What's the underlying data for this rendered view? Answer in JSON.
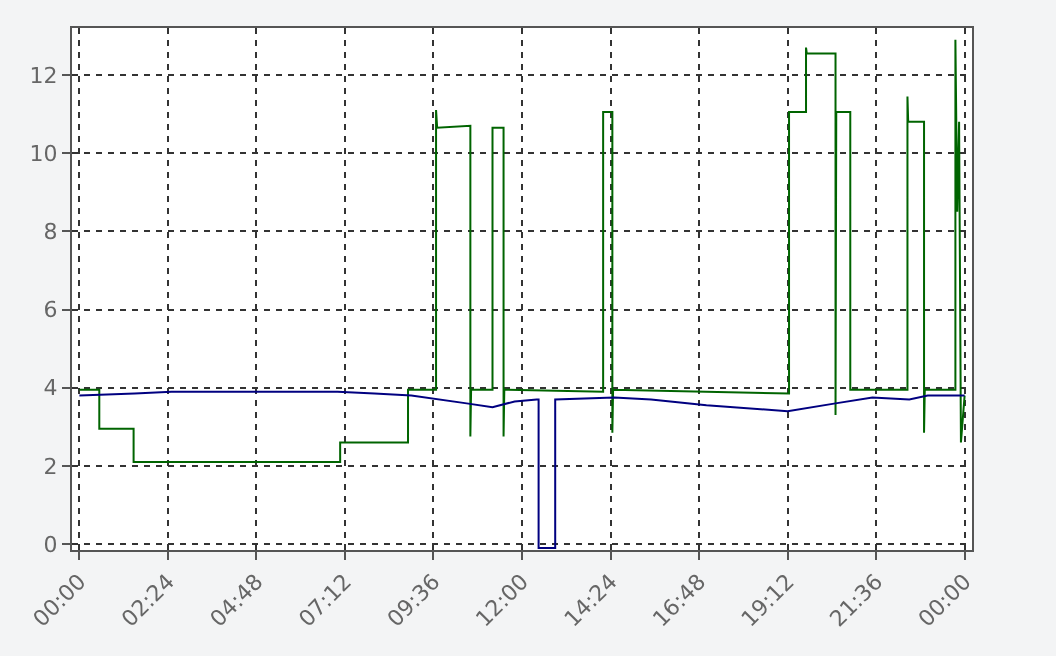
{
  "chart_data": {
    "type": "line",
    "xlim": [
      -0.2,
      24.2
    ],
    "xticks": [
      {
        "value": 0,
        "label": "00:00"
      },
      {
        "value": 2.4,
        "label": "02:24"
      },
      {
        "value": 4.8,
        "label": "04:48"
      },
      {
        "value": 7.2,
        "label": "07:12"
      },
      {
        "value": 9.6,
        "label": "09:36"
      },
      {
        "value": 12,
        "label": "12:00"
      },
      {
        "value": 14.4,
        "label": "14:24"
      },
      {
        "value": 16.8,
        "label": "16:48"
      },
      {
        "value": 19.2,
        "label": "19:12"
      },
      {
        "value": 21.6,
        "label": "21:36"
      },
      {
        "value": 24,
        "label": "00:00"
      }
    ],
    "ylim": [
      -0.15,
      13.2
    ],
    "yticks": [
      0,
      2,
      4,
      6,
      8,
      10,
      12
    ],
    "grid": true,
    "marker": "none",
    "line_style": "solid",
    "series": [
      {
        "color": "#006400",
        "x": [
          0,
          0.54,
          0.54,
          1.47,
          1.47,
          7.07,
          7.07,
          8.91,
          8.91,
          9.67,
          9.67,
          9.7,
          10.6,
          10.6,
          10.62,
          11.2,
          11.2,
          11.5,
          11.5,
          11.52,
          14.2,
          14.2,
          14.45,
          14.45,
          14.47,
          19.24,
          19.24,
          19.7,
          19.7,
          19.72,
          20.5,
          20.5,
          20.52,
          20.9,
          20.9,
          22.45,
          22.45,
          22.47,
          22.9,
          22.9,
          22.92,
          23.75,
          23.75,
          23.8,
          23.85,
          23.9,
          24.0
        ],
        "values": [
          3.95,
          3.95,
          2.95,
          2.95,
          2.1,
          2.1,
          2.6,
          2.6,
          3.95,
          3.95,
          11.1,
          10.65,
          10.7,
          2.75,
          3.95,
          3.95,
          10.65,
          10.65,
          2.75,
          3.95,
          3.9,
          11.05,
          11.05,
          2.85,
          3.95,
          3.85,
          11.05,
          11.05,
          12.7,
          12.55,
          12.55,
          3.3,
          11.05,
          11.05,
          3.95,
          3.95,
          11.45,
          10.8,
          10.8,
          2.85,
          3.95,
          3.95,
          12.9,
          8.5,
          10.8,
          2.6,
          3.8
        ]
      },
      {
        "color": "#000080",
        "x": [
          0,
          1.5,
          2.5,
          7,
          8,
          9,
          10.5,
          11.2,
          11.8,
          12.4,
          12.45,
          12.45,
          12.9,
          12.9,
          14.5,
          15.5,
          17,
          19.2,
          20.5,
          21.5,
          22.5,
          23,
          24
        ],
        "values": [
          3.8,
          3.85,
          3.9,
          3.9,
          3.85,
          3.8,
          3.6,
          3.5,
          3.65,
          3.7,
          3.7,
          -0.1,
          -0.1,
          3.7,
          3.75,
          3.7,
          3.55,
          3.4,
          3.6,
          3.75,
          3.7,
          3.8,
          3.8
        ]
      }
    ]
  }
}
